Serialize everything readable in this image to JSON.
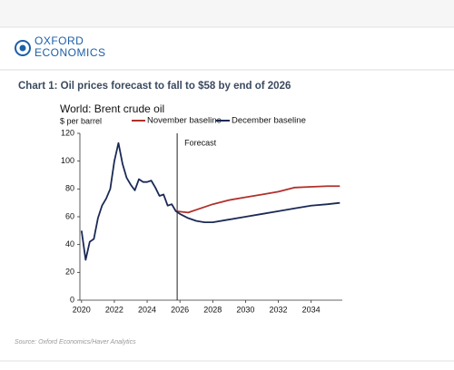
{
  "header": {
    "logo_line1": "OXFORD",
    "logo_line2": "ECONOMICS"
  },
  "chart_data": {
    "type": "line",
    "title": "Chart 1: Oil prices forecast to fall to $58 by end of 2026",
    "subtitle": "World: Brent crude oil",
    "y_label": "$ per barrel",
    "source": "Source: Oxford Economics/Haver Analytics",
    "annotations": [
      {
        "text": "Forecast",
        "x": 2025.83
      }
    ],
    "xlim": [
      2019.9,
      2035.9
    ],
    "xticks": [
      2020,
      2022,
      2024,
      2026,
      2028,
      2030,
      2032,
      2034
    ],
    "ylim": [
      0,
      120
    ],
    "yticks": [
      0,
      20,
      40,
      60,
      80,
      100,
      120
    ],
    "series": [
      {
        "name": "November baseline",
        "color": "#b0302c",
        "x": [
          2025.75,
          2026.5,
          2027,
          2028,
          2029,
          2030,
          2031,
          2032,
          2033,
          2034,
          2035,
          2035.75
        ],
        "values": [
          64,
          63,
          65,
          69,
          72,
          74,
          76,
          78,
          81,
          81.5,
          82,
          82
        ]
      },
      {
        "name": "December baseline",
        "color": "#1b2a55",
        "x": [
          2020,
          2020.25,
          2020.5,
          2020.75,
          2021,
          2021.25,
          2021.5,
          2021.75,
          2022,
          2022.25,
          2022.5,
          2022.75,
          2023,
          2023.25,
          2023.5,
          2023.75,
          2024,
          2024.25,
          2024.5,
          2024.75,
          2025,
          2025.25,
          2025.5,
          2025.75,
          2026,
          2026.5,
          2027,
          2027.5,
          2028,
          2029,
          2030,
          2031,
          2032,
          2033,
          2034,
          2035,
          2035.75
        ],
        "values": [
          50,
          29,
          42,
          44,
          59,
          68,
          73,
          80,
          100,
          113,
          98,
          88,
          83,
          79,
          87,
          85,
          85,
          86,
          81,
          75,
          76,
          68,
          69,
          64,
          62,
          59,
          57,
          56,
          56,
          58,
          60,
          62,
          64,
          66,
          68,
          69,
          70
        ]
      }
    ]
  }
}
